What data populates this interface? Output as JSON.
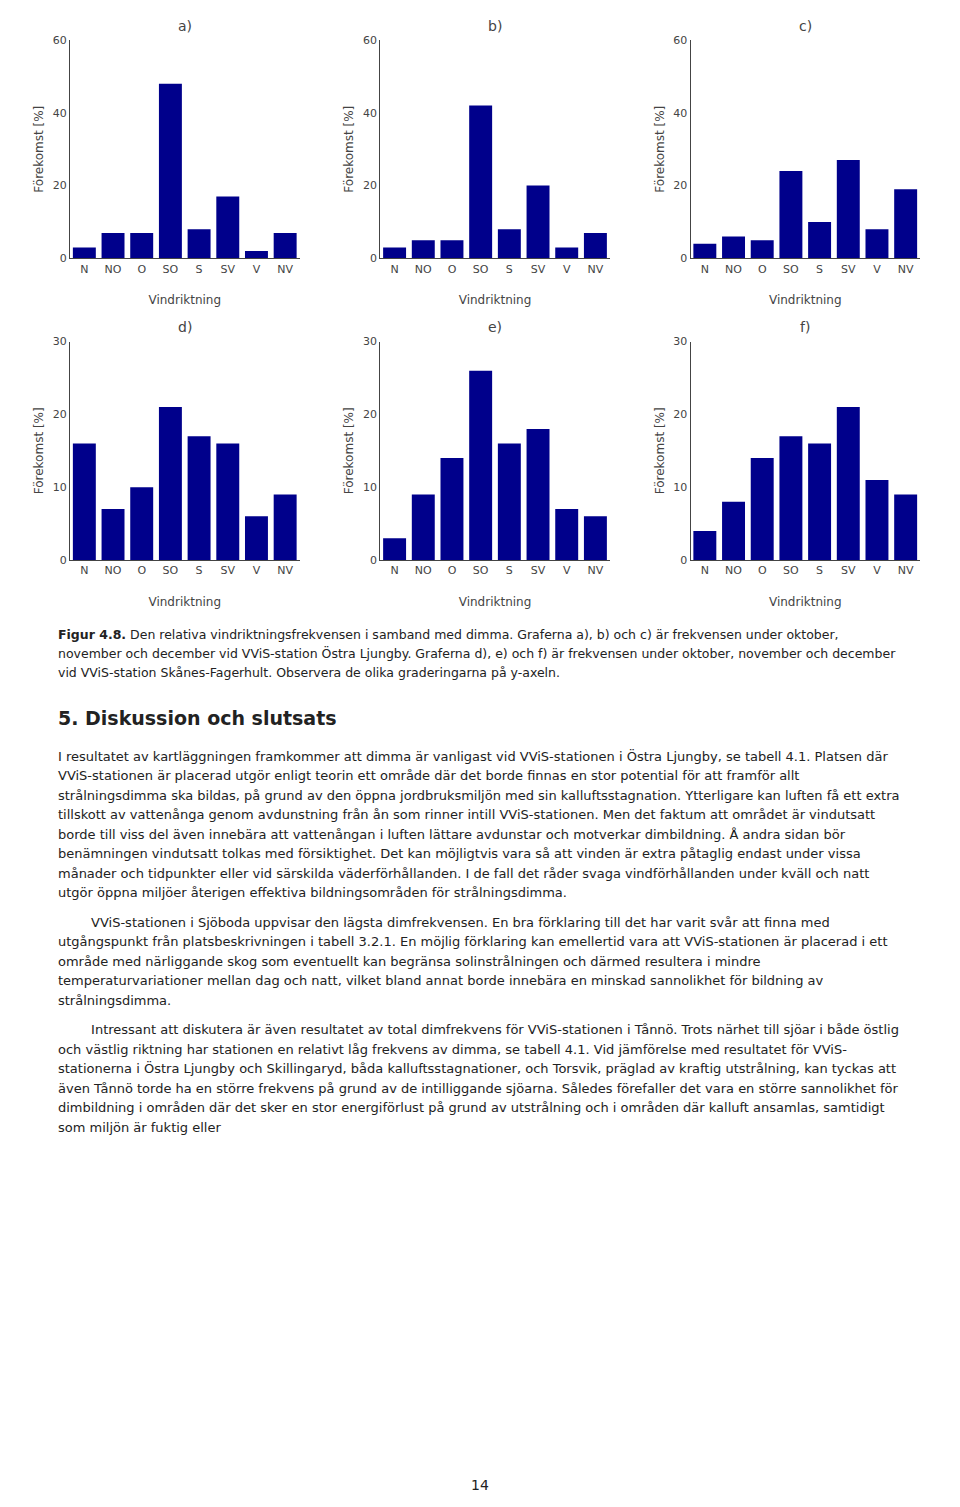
{
  "chart_data": [
    {
      "type": "bar",
      "title": "a)",
      "categories": [
        "N",
        "NO",
        "O",
        "SO",
        "S",
        "SV",
        "V",
        "NV"
      ],
      "values": [
        3,
        7,
        7,
        48,
        8,
        17,
        2,
        7
      ],
      "color": "#00008B",
      "xlabel": "Vindriktning",
      "ylabel": "Förekomst [%]",
      "ylim": [
        0,
        60
      ],
      "yticks": [
        0,
        20,
        40,
        60
      ],
      "grid": false
    },
    {
      "type": "bar",
      "title": "b)",
      "categories": [
        "N",
        "NO",
        "O",
        "SO",
        "S",
        "SV",
        "V",
        "NV"
      ],
      "values": [
        3,
        5,
        5,
        42,
        8,
        20,
        3,
        7
      ],
      "color": "#00008B",
      "xlabel": "Vindriktning",
      "ylabel": "Förekomst [%]",
      "ylim": [
        0,
        60
      ],
      "yticks": [
        0,
        20,
        40,
        60
      ],
      "grid": false
    },
    {
      "type": "bar",
      "title": "c)",
      "categories": [
        "N",
        "NO",
        "O",
        "SO",
        "S",
        "SV",
        "V",
        "NV"
      ],
      "values": [
        4,
        6,
        5,
        24,
        10,
        27,
        8,
        19
      ],
      "color": "#00008B",
      "xlabel": "Vindriktning",
      "ylabel": "Förekomst [%]",
      "ylim": [
        0,
        60
      ],
      "yticks": [
        0,
        20,
        40,
        60
      ],
      "grid": false
    },
    {
      "type": "bar",
      "title": "d)",
      "categories": [
        "N",
        "NO",
        "O",
        "SO",
        "S",
        "SV",
        "V",
        "NV"
      ],
      "values": [
        16,
        7,
        10,
        21,
        17,
        16,
        6,
        9
      ],
      "color": "#00008B",
      "xlabel": "Vindriktning",
      "ylabel": "Förekomst [%]",
      "ylim": [
        0,
        30
      ],
      "yticks": [
        0,
        10,
        20,
        30
      ],
      "grid": false
    },
    {
      "type": "bar",
      "title": "e)",
      "categories": [
        "N",
        "NO",
        "O",
        "SO",
        "S",
        "SV",
        "V",
        "NV"
      ],
      "values": [
        3,
        9,
        14,
        26,
        16,
        18,
        7,
        6
      ],
      "color": "#00008B",
      "xlabel": "Vindriktning",
      "ylabel": "Förekomst [%]",
      "ylim": [
        0,
        30
      ],
      "yticks": [
        0,
        10,
        20,
        30
      ],
      "grid": false
    },
    {
      "type": "bar",
      "title": "f)",
      "categories": [
        "N",
        "NO",
        "O",
        "SO",
        "S",
        "SV",
        "V",
        "NV"
      ],
      "values": [
        4,
        8,
        14,
        17,
        16,
        21,
        11,
        9
      ],
      "color": "#00008B",
      "xlabel": "Vindriktning",
      "ylabel": "Förekomst [%]",
      "ylim": [
        0,
        30
      ],
      "yticks": [
        0,
        10,
        20,
        30
      ],
      "grid": false
    }
  ],
  "annotations": [
    "Figur 4.8.",
    "Den relativa vindriktningsfrekvensen i samband med dimma. Graferna a), b) och c) är frekvensen under oktober, november och december vid VViS-station Östra Ljungby. Graferna d), e) och f) är frekvensen under oktober, november och december vid VViS-station Skånes-Fagerhult. Observera de olika graderingarna på y-axeln.",
    "5. Diskussion och slutsats",
    "I resultatet av kartläggningen framkommer att dimma är vanligast vid VViS-stationen i Östra Ljungby, se tabell 4.1. Platsen där VViS-stationen är placerad utgör enligt teorin ett område där det borde finnas en stor potential för att framför allt strålningsdimma ska bildas, på grund av den öppna jordbruksmiljön med sin kalluftsstagnation. Ytterligare kan luften få ett extra tillskott av vattenånga genom avdunstning från ån som rinner intill VViS-stationen. Men det faktum att området är vindutsatt borde till viss del även innebära att vattenångan i luften lättare avdunstar och motverkar dimbildning. Å andra sidan bör benämningen ⁠vindutsatt⁠ tolkas med försiktighet. Det kan möjligtvis vara så att vinden är extra påtaglig endast under vissa månader och tidpunkter eller vid särskilda väderförhållanden. I de fall det råder svaga vindförhållanden under kväll och natt utgör öppna miljöer återigen effektiva bildningsområden för strålningsdimma.",
    "        VViS-stationen i Sjöboda uppvisar den lägsta dimfrekvensen. En bra förklaring till det har varit svår att finna med utgångspunkt från platsbeskrivningen i tabell 3.2.1. En möjlig förklaring kan emellertid vara att VViS-stationen är placerad i ett område med närliggande skog som eventuellt kan begränsa solinstrålningen och därmed resultera i mindre temperaturvariationer mellan dag och natt, vilket bland annat borde innebära en minskad sannolikhet för bildning av strålningsdimma.",
    "        Intressant att diskutera är även resultatet av total dimfrekvens för VViS-stationen i Tånnö. Trots närhet till sjöar i både östlig och västlig riktning har stationen en relativt låg frekvens av dimma, se tabell 4.1. Vid jämförelse med resultatet för VViS-stationerna i Östra Ljungby och Skillingaryd, båda kalluftsstagnationer, och Torsvik, präglad av kraftig utstrålning, kan tyckas att även Tånnö torde ha en större frekvens på grund av de intilliggande sjöarna. Således förefaller det vara en större sannolikhet för dimbildning i områden där det sker en stor energiförlust på grund av utstrålning och i områden där kalluft ansamlas, samtidigt som miljön är fuktig eller",
    "14"
  ]
}
